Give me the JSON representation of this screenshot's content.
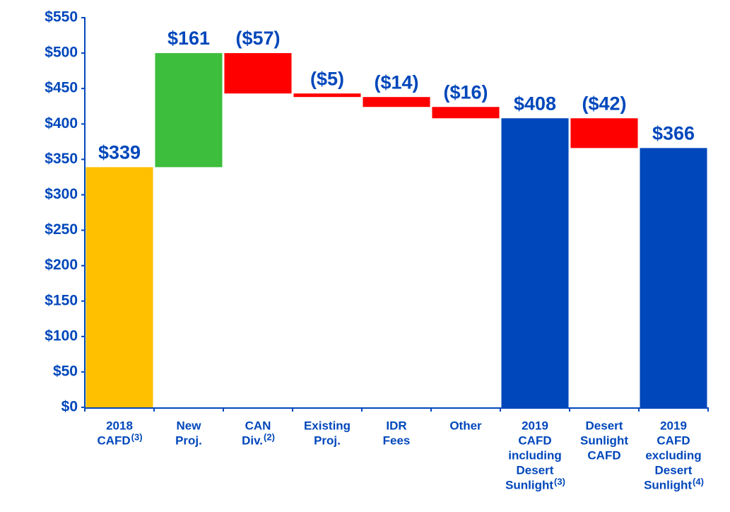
{
  "chart_data": {
    "type": "waterfall",
    "categories": [
      [
        "2018",
        "CAFD"
      ],
      [
        "New",
        "Proj."
      ],
      [
        "CAN",
        "Div."
      ],
      [
        "Existing",
        "Proj."
      ],
      [
        "IDR",
        "Fees"
      ],
      [
        "Other"
      ],
      [
        "2019",
        "CAFD",
        "including",
        "Desert",
        "Sunlight"
      ],
      [
        "Desert",
        "Sunlight",
        "CAFD"
      ],
      [
        "2019",
        "CAFD",
        "excluding",
        "Desert",
        "Sunlight"
      ]
    ],
    "category_notes": [
      "(3)",
      null,
      "(2)",
      null,
      null,
      null,
      "(3)",
      null,
      "(4)"
    ],
    "measures": [
      "total",
      "relative",
      "relative",
      "relative",
      "relative",
      "relative",
      "total",
      "relative",
      "total"
    ],
    "values": [
      339,
      161,
      -57,
      -5,
      -14,
      -16,
      408,
      -42,
      366
    ],
    "value_labels": [
      "$339",
      "$161",
      "($57)",
      "($5)",
      "($14)",
      "($16)",
      "$408",
      "($42)",
      "$366"
    ],
    "colors": [
      "#FFC000",
      "#3DBE3D",
      "#FF0000",
      "#FF0000",
      "#FF0000",
      "#FF0000",
      "#0047BB",
      "#FF0000",
      "#0047BB"
    ],
    "ylim": [
      0,
      550
    ],
    "yticks": [
      {
        "value": 0,
        "label": "$0"
      },
      {
        "value": 50,
        "label": "$50"
      },
      {
        "value": 100,
        "label": "$100"
      },
      {
        "value": 150,
        "label": "$150"
      },
      {
        "value": 200,
        "label": "$200"
      },
      {
        "value": 250,
        "label": "$250"
      },
      {
        "value": 300,
        "label": "$300"
      },
      {
        "value": 350,
        "label": "$350"
      },
      {
        "value": 400,
        "label": "$400"
      },
      {
        "value": 450,
        "label": "$450"
      },
      {
        "value": 500,
        "label": "$500"
      },
      {
        "value": 550,
        "label": "$550"
      }
    ]
  }
}
